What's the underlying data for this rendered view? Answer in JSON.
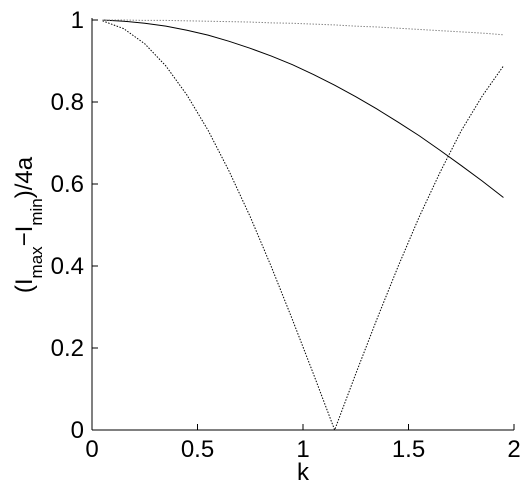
{
  "chart_data": {
    "type": "line",
    "xlabel": "k",
    "ylabel": [
      "(I",
      "max",
      "−I",
      "min",
      ")/4a"
    ],
    "x": [
      0.05,
      0.15,
      0.25,
      0.35,
      0.45,
      0.55,
      0.65,
      0.75,
      0.85,
      0.95,
      1.05,
      1.15,
      1.25,
      1.35,
      1.45,
      1.55,
      1.65,
      1.75,
      1.85,
      1.95
    ],
    "series": [
      {
        "color": "#000000",
        "style": "solid",
        "values": [
          1.0,
          0.997,
          0.992,
          0.985,
          0.975,
          0.963,
          0.948,
          0.931,
          0.912,
          0.891,
          0.867,
          0.841,
          0.813,
          0.783,
          0.751,
          0.718,
          0.682,
          0.645,
          0.607,
          0.567
        ]
      },
      {
        "color": "#000000",
        "style": "dotted",
        "values": [
          0.998,
          0.979,
          0.942,
          0.888,
          0.817,
          0.731,
          0.631,
          0.52,
          0.398,
          0.269,
          0.136,
          0.0,
          0.137,
          0.27,
          0.398,
          0.519,
          0.629,
          0.73,
          0.815,
          0.888
        ]
      },
      {
        "color": "#888888",
        "style": "dotted",
        "values": [
          1.0,
          1.0,
          0.999,
          0.999,
          0.998,
          0.997,
          0.996,
          0.995,
          0.993,
          0.992,
          0.99,
          0.988,
          0.985,
          0.983,
          0.98,
          0.977,
          0.974,
          0.971,
          0.968,
          0.964
        ]
      }
    ],
    "xlim": [
      0,
      2
    ],
    "ylim": [
      0,
      1
    ],
    "xticks": [
      0,
      0.5,
      1,
      1.5,
      2
    ],
    "yticks": [
      0,
      0.2,
      0.4,
      0.6,
      0.8,
      1
    ]
  }
}
